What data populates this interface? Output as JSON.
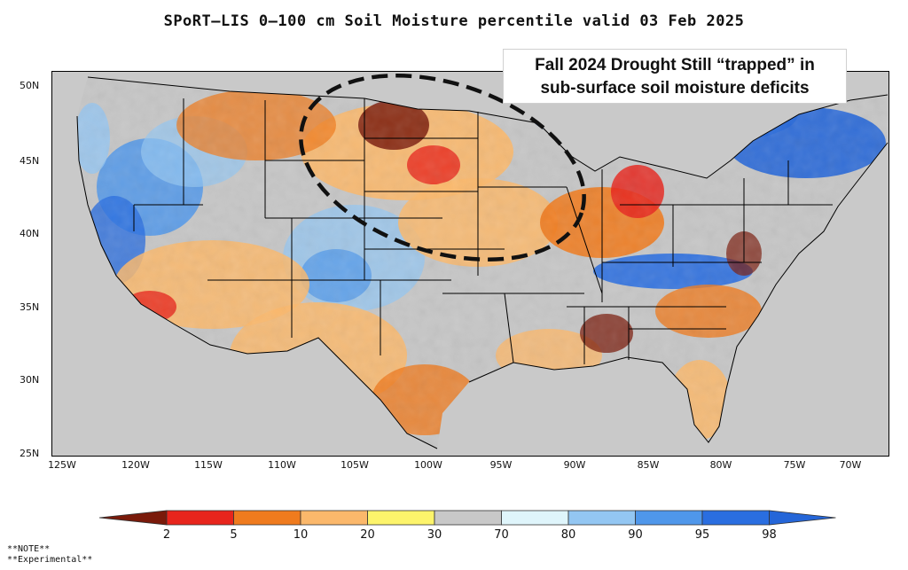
{
  "title": "SPoRT–LIS 0–100 cm Soil Moisture percentile valid 03 Feb 2025",
  "callout": {
    "line1": "Fall 2024 Drought Still “trapped” in",
    "line2": "sub-surface soil moisture deficits"
  },
  "lat_labels": [
    "50N",
    "45N",
    "40N",
    "35N",
    "30N",
    "25N"
  ],
  "lon_labels": [
    "125W",
    "120W",
    "115W",
    "110W",
    "105W",
    "100W",
    "95W",
    "90W",
    "85W",
    "80W",
    "75W",
    "70W"
  ],
  "colorbar": {
    "labels": [
      "2",
      "5",
      "10",
      "20",
      "30",
      "70",
      "80",
      "90",
      "95",
      "98"
    ],
    "colors": [
      "#7a1a0a",
      "#e8251c",
      "#ef7b1e",
      "#fbb86b",
      "#fdf46b",
      "#c8c8c8",
      "#dff5fb",
      "#93c6f2",
      "#4f97ea",
      "#2a6ee0",
      "#2566d8"
    ]
  },
  "notes": [
    "**NOTE**",
    "**Experimental**"
  ]
}
